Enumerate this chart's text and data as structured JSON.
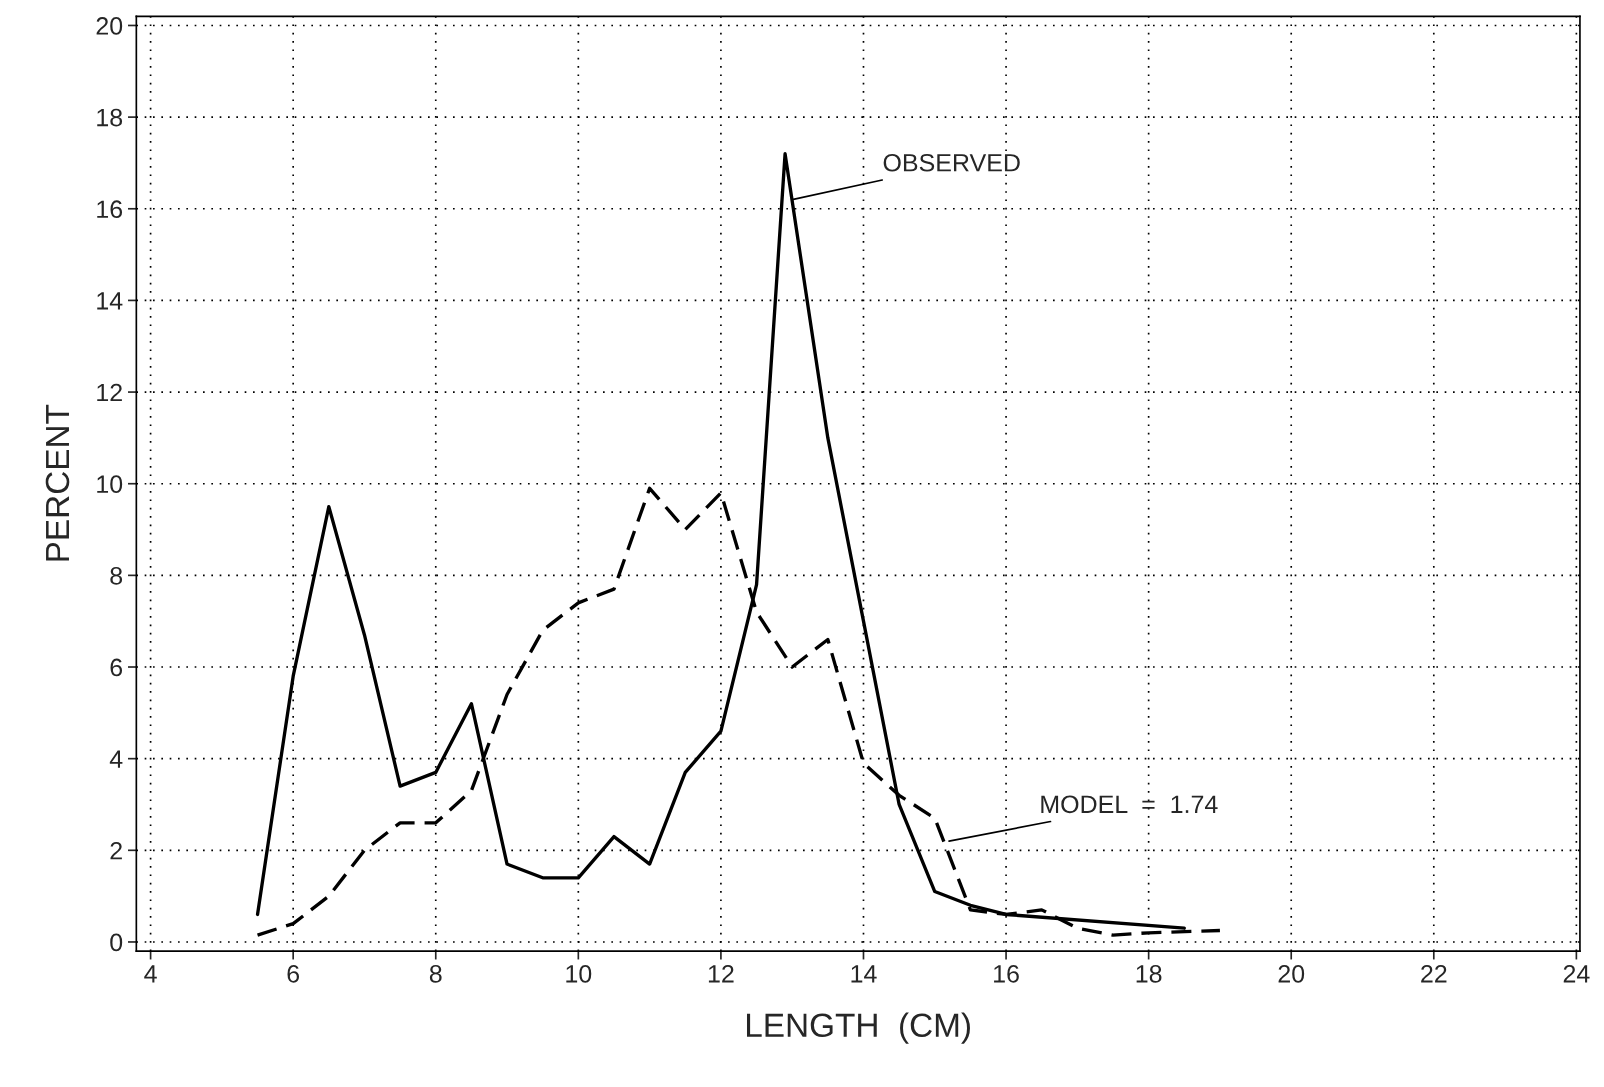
{
  "chart_data": {
    "type": "line",
    "xlabel": "LENGTH  (CM)",
    "ylabel": "PERCENT",
    "xlim": [
      3.8,
      24.05
    ],
    "ylim": [
      -0.2,
      20.2
    ],
    "xticks": [
      4,
      6,
      8,
      10,
      12,
      14,
      16,
      18,
      20,
      22,
      24
    ],
    "yticks": [
      0,
      2,
      4,
      6,
      8,
      10,
      12,
      14,
      16,
      18,
      20
    ],
    "grid": true,
    "legend": false,
    "marker": "none",
    "series": [
      {
        "color": "#000000",
        "line_style": "solid",
        "x": [
          5.5,
          6.0,
          6.5,
          7.0,
          7.5,
          8.0,
          8.5,
          9.0,
          9.5,
          10.0,
          10.5,
          11.0,
          11.5,
          12.0,
          12.5,
          12.9,
          13.5,
          14.0,
          14.5,
          15.0,
          15.5,
          16.0,
          18.5
        ],
        "values": [
          0.6,
          5.8,
          9.5,
          6.7,
          3.4,
          3.7,
          5.2,
          1.7,
          1.4,
          1.4,
          2.3,
          1.7,
          3.7,
          4.6,
          7.8,
          17.2,
          11.0,
          7.0,
          3.0,
          1.1,
          0.8,
          0.6,
          0.3
        ]
      },
      {
        "color": "#000000",
        "line_style": "dashed",
        "x": [
          5.5,
          6.0,
          6.5,
          7.0,
          7.5,
          8.0,
          8.5,
          9.0,
          9.5,
          10.0,
          10.5,
          11.0,
          11.5,
          12.0,
          12.5,
          13.0,
          13.5,
          14.0,
          14.5,
          15.0,
          15.5,
          16.0,
          16.5,
          17.0,
          17.5,
          18.0,
          19.0
        ],
        "values": [
          0.15,
          0.4,
          1.0,
          2.0,
          2.6,
          2.6,
          3.3,
          5.4,
          6.8,
          7.4,
          7.7,
          9.9,
          9.0,
          9.8,
          7.2,
          6.0,
          6.6,
          3.9,
          3.2,
          2.7,
          0.7,
          0.6,
          0.7,
          0.3,
          0.15,
          0.2,
          0.25
        ]
      }
    ],
    "annotations": [
      {
        "text": "OBSERVED",
        "x": 13.0,
        "y": 16.2
      },
      {
        "text": "MODEL  =  1.74",
        "x": 15.2,
        "y": 2.2
      }
    ]
  }
}
